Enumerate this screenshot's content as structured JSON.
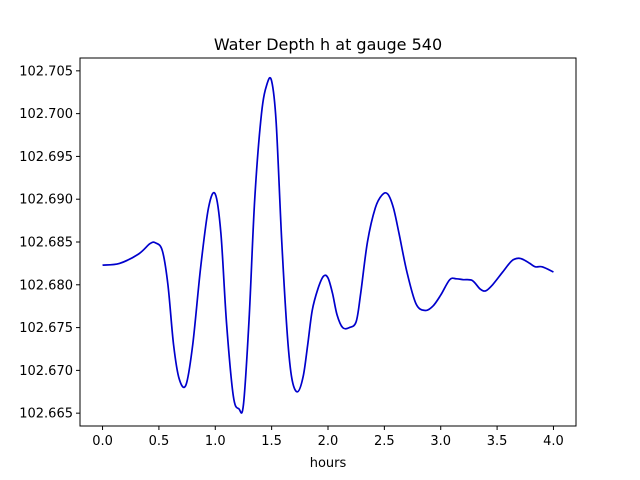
{
  "chart_data": {
    "type": "line",
    "title": "Water Depth h at gauge 540",
    "xlabel": "hours",
    "ylabel": "",
    "xlim": [
      -0.2,
      4.2
    ],
    "ylim": [
      102.6635,
      102.7065
    ],
    "grid": false,
    "legend": "none",
    "line_color": "#0000cc",
    "x_ticks": [
      0.0,
      0.5,
      1.0,
      1.5,
      2.0,
      2.5,
      3.0,
      3.5,
      4.0
    ],
    "x_tick_labels": [
      "0.0",
      "0.5",
      "1.0",
      "1.5",
      "2.0",
      "2.5",
      "3.0",
      "3.5",
      "4.0"
    ],
    "y_ticks": [
      102.665,
      102.67,
      102.675,
      102.68,
      102.685,
      102.69,
      102.695,
      102.7,
      102.705
    ],
    "y_tick_labels": [
      "102.665",
      "102.670",
      "102.675",
      "102.680",
      "102.685",
      "102.690",
      "102.695",
      "102.700",
      "102.705"
    ],
    "series": [
      {
        "x": [
          0.0,
          0.15,
          0.32,
          0.42,
          0.47,
          0.53,
          0.58,
          0.63,
          0.68,
          0.74,
          0.8,
          0.87,
          0.94,
          1.0,
          1.05,
          1.1,
          1.16,
          1.21,
          1.25,
          1.3,
          1.35,
          1.41,
          1.46,
          1.5,
          1.54,
          1.59,
          1.64,
          1.68,
          1.73,
          1.78,
          1.82,
          1.86,
          1.91,
          1.96,
          2.0,
          2.04,
          2.08,
          2.13,
          2.19,
          2.25,
          2.29,
          2.35,
          2.42,
          2.48,
          2.53,
          2.58,
          2.63,
          2.7,
          2.78,
          2.86,
          2.93,
          3.0,
          3.08,
          3.14,
          3.2,
          3.28,
          3.35,
          3.4,
          3.46,
          3.55,
          3.63,
          3.69,
          3.74,
          3.79,
          3.84,
          3.9,
          4.0
        ],
        "values": [
          102.6823,
          102.6825,
          102.6836,
          102.6848,
          102.6849,
          102.684,
          102.68,
          102.673,
          102.669,
          102.6683,
          102.673,
          102.682,
          102.689,
          102.6906,
          102.686,
          102.6755,
          102.667,
          102.6655,
          102.666,
          102.676,
          102.69,
          102.7,
          102.7035,
          102.7038,
          102.699,
          102.685,
          102.674,
          102.669,
          102.6675,
          102.6693,
          102.673,
          102.677,
          102.6795,
          102.681,
          102.6808,
          102.679,
          102.6765,
          102.675,
          102.675,
          102.6757,
          102.679,
          102.685,
          102.689,
          102.6905,
          102.6906,
          102.689,
          102.686,
          102.6815,
          102.6778,
          102.677,
          102.6775,
          102.6788,
          102.6806,
          102.6807,
          102.6806,
          102.6805,
          102.6795,
          102.6793,
          102.68,
          102.6815,
          102.6828,
          102.6831,
          102.6829,
          102.6825,
          102.6821,
          102.6821,
          102.6815
        ]
      }
    ]
  }
}
